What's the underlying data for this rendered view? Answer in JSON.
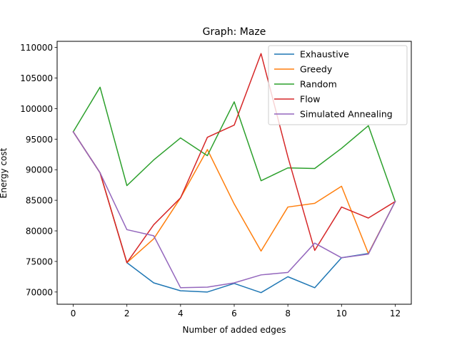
{
  "chart_data": {
    "type": "line",
    "title": "Graph: Maze",
    "xlabel": "Number of added edges",
    "ylabel": "Energy cost",
    "xlim": [
      -0.6,
      12.6
    ],
    "ylim": [
      68000,
      111000
    ],
    "xticks": [
      0,
      2,
      4,
      6,
      8,
      10,
      12
    ],
    "yticks": [
      70000,
      75000,
      80000,
      85000,
      90000,
      95000,
      100000,
      105000,
      110000
    ],
    "x": [
      0,
      1,
      2,
      3,
      4,
      5,
      6,
      7,
      8,
      9,
      10,
      11,
      12
    ],
    "grid": false,
    "legend_position": "top-right",
    "series": [
      {
        "name": "Exhaustive",
        "color": "#1f77b4",
        "values": [
          96200,
          89500,
          74800,
          71500,
          70200,
          70000,
          71400,
          69900,
          72500,
          70700,
          75600,
          76300,
          84800
        ]
      },
      {
        "name": "Greedy",
        "color": "#ff7f0e",
        "values": [
          96200,
          89500,
          74800,
          78700,
          85400,
          93300,
          84400,
          76700,
          83900,
          84500,
          87300,
          76300,
          84800
        ]
      },
      {
        "name": "Random",
        "color": "#2ca02c",
        "values": [
          96200,
          103500,
          87400,
          91600,
          95200,
          92300,
          101100,
          88200,
          90300,
          90200,
          93500,
          97200,
          84800
        ]
      },
      {
        "name": "Flow",
        "color": "#d62728",
        "values": [
          96200,
          89500,
          74800,
          81000,
          85400,
          95300,
          97300,
          109000,
          92100,
          76800,
          83900,
          82100,
          84800
        ]
      },
      {
        "name": "Simulated Annealing",
        "color": "#9467bd",
        "values": [
          96200,
          89500,
          80200,
          79200,
          70700,
          70800,
          71500,
          72800,
          73200,
          78000,
          75600,
          76200,
          84800
        ]
      }
    ]
  }
}
